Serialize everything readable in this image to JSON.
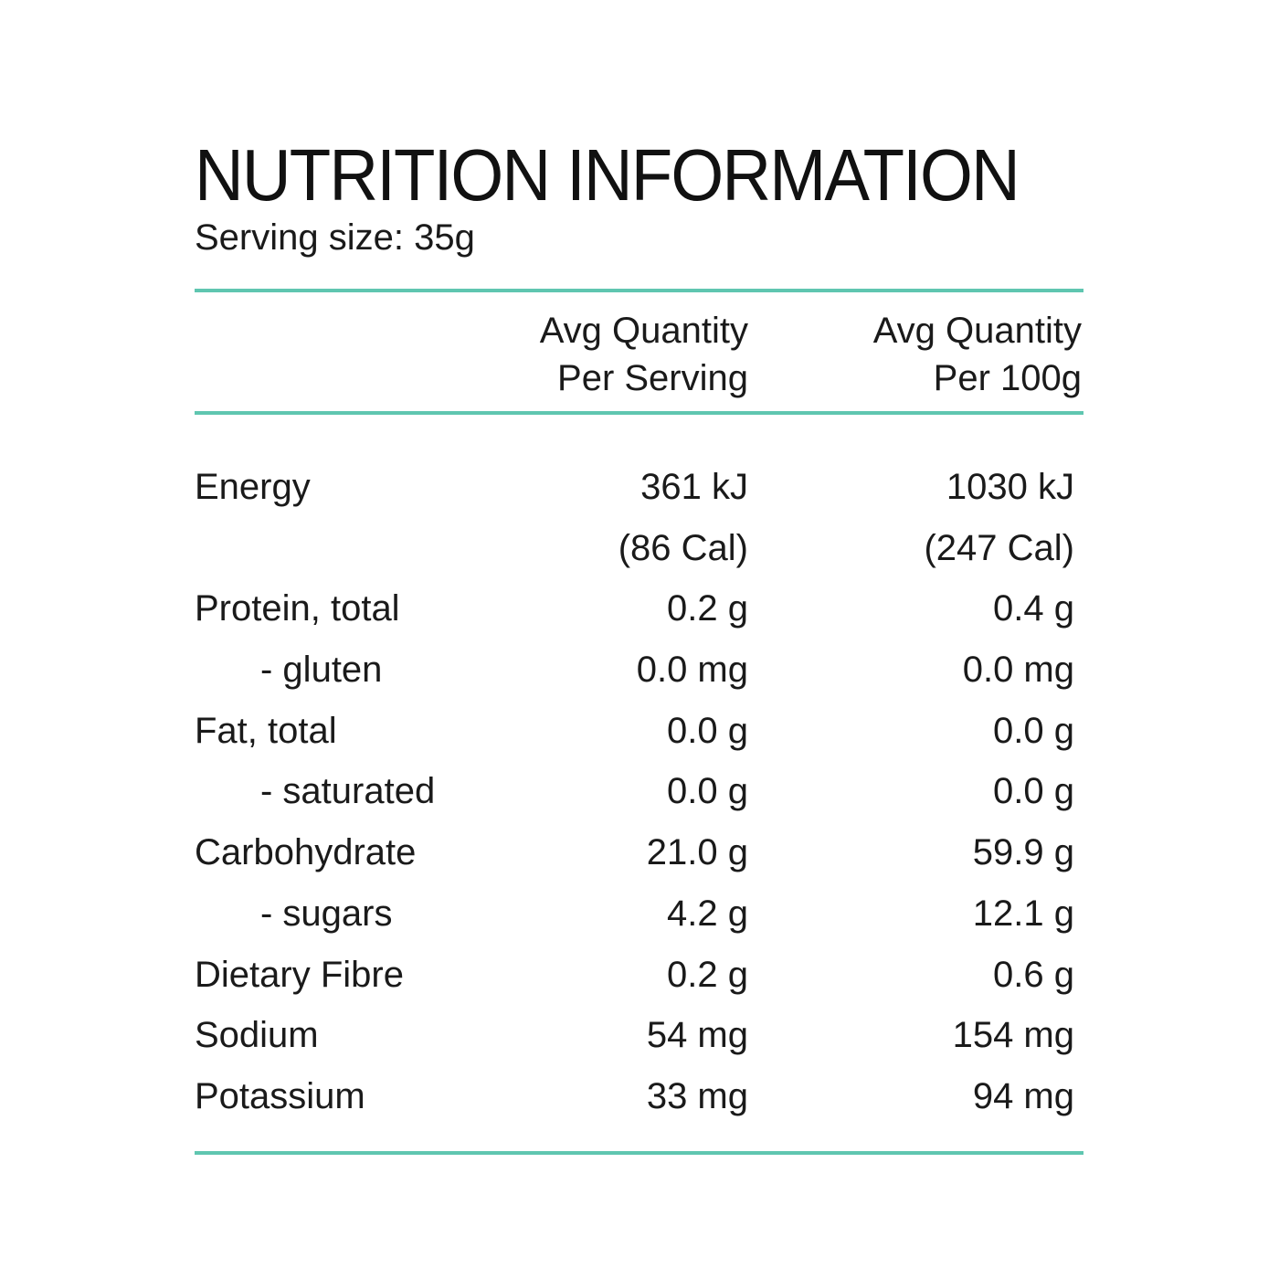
{
  "accent_color": "#5fc6b0",
  "title": "NUTRITION INFORMATION",
  "serving_size": "Serving size: 35g",
  "columns": {
    "per_serving": [
      "Avg Quantity",
      "Per Serving"
    ],
    "per_100g": [
      "Avg Quantity",
      "Per 100g"
    ]
  },
  "rows": [
    {
      "label": "Energy",
      "per_serving": "361 kJ",
      "per_100g": "1030 kJ",
      "indent": false
    },
    {
      "label": "",
      "per_serving": "(86 Cal)",
      "per_100g": "(247 Cal)",
      "indent": false
    },
    {
      "label": "Protein, total",
      "per_serving": "0.2 g",
      "per_100g": "0.4 g",
      "indent": false
    },
    {
      "label": "- gluten",
      "per_serving": "0.0 mg",
      "per_100g": "0.0 mg",
      "indent": true
    },
    {
      "label": "Fat, total",
      "per_serving": "0.0 g",
      "per_100g": "0.0 g",
      "indent": false
    },
    {
      "label": "- saturated",
      "per_serving": "0.0 g",
      "per_100g": "0.0 g",
      "indent": true
    },
    {
      "label": "Carbohydrate",
      "per_serving": "21.0 g",
      "per_100g": "59.9 g",
      "indent": false
    },
    {
      "label": "- sugars",
      "per_serving": "4.2 g",
      "per_100g": "12.1 g",
      "indent": true
    },
    {
      "label": "Dietary Fibre",
      "per_serving": "0.2 g",
      "per_100g": "0.6 g",
      "indent": false
    },
    {
      "label": "Sodium",
      "per_serving": "54 mg",
      "per_100g": "154 mg",
      "indent": false
    },
    {
      "label": "Potassium",
      "per_serving": "33 mg",
      "per_100g": "94 mg",
      "indent": false
    }
  ]
}
